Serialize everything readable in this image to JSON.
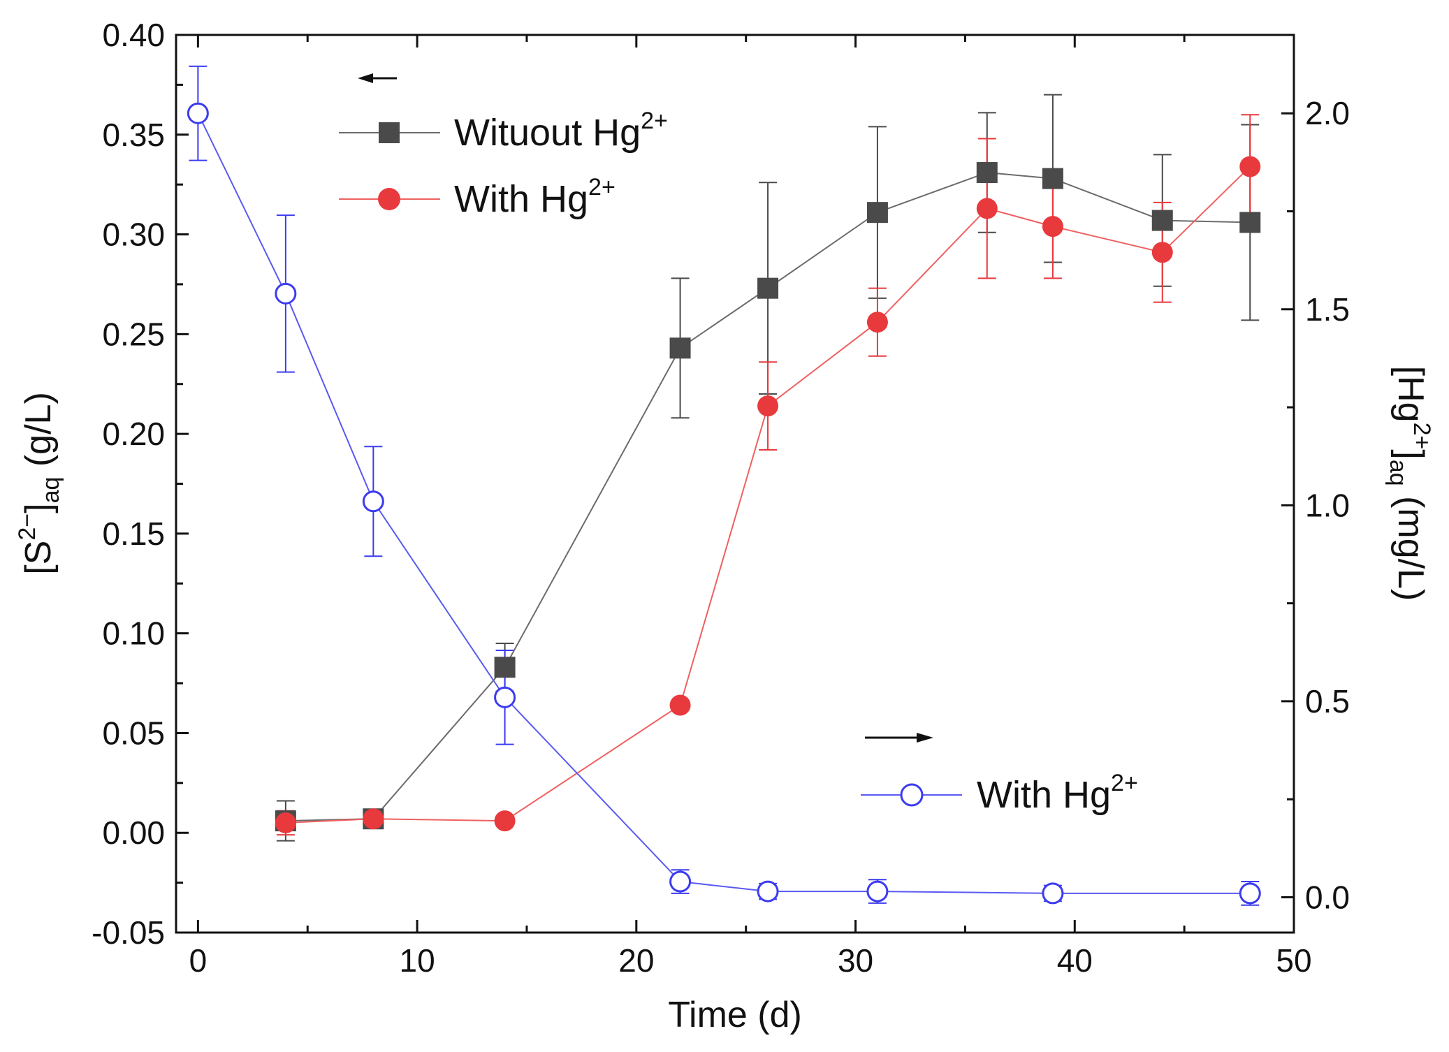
{
  "chart_data": {
    "type": "line",
    "x_axis": {
      "label": "Time (d)",
      "range": [
        -1,
        50
      ],
      "ticks": [
        0,
        10,
        20,
        30,
        40,
        50
      ],
      "tick_labels": [
        "0",
        "10",
        "20",
        "30",
        "40",
        "50"
      ]
    },
    "y_left": {
      "label_main": "[S",
      "label_sup": "2−",
      "label_mid": "]",
      "label_sub": "aq",
      "label_unit": " (g/L)",
      "range": [
        -0.05,
        0.4
      ],
      "ticks": [
        -0.05,
        0,
        0.05,
        0.1,
        0.15,
        0.2,
        0.25,
        0.3,
        0.35,
        0.4
      ],
      "tick_labels": [
        "-0.05",
        "0.00",
        "0.05",
        "0.10",
        "0.15",
        "0.20",
        "0.25",
        "0.30",
        "0.35",
        "0.40"
      ]
    },
    "y_right": {
      "label_main": "[Hg",
      "label_sup": "2+",
      "label_mid": "]",
      "label_sub": "aq",
      "label_unit": " (mg/L)",
      "range": [
        -0.09,
        2.2
      ],
      "ticks": [
        0,
        0.5,
        1,
        1.5,
        2
      ],
      "tick_labels": [
        "0.0",
        "0.5",
        "1.0",
        "1.5",
        "2.0"
      ]
    },
    "grid": false,
    "series": [
      {
        "name_main": "Wituout Hg",
        "name_sup": "2+",
        "axis": "left",
        "marker": "square",
        "filled": true,
        "color": "#4a4a4a",
        "line_color": "#6b6b6b",
        "x": [
          4,
          8,
          14,
          22,
          26,
          31,
          36,
          39,
          44,
          48
        ],
        "y": [
          0.006,
          0.007,
          0.083,
          0.243,
          0.273,
          0.311,
          0.331,
          0.328,
          0.307,
          0.306
        ],
        "err": [
          0.01,
          0.004,
          0.012,
          0.035,
          0.053,
          0.043,
          0.03,
          0.042,
          0.033,
          0.049
        ]
      },
      {
        "name_main": "With Hg",
        "name_sup": "2+",
        "axis": "left",
        "marker": "circle",
        "filled": true,
        "color": "#e8393d",
        "line_color": "#f06060",
        "x": [
          4,
          8,
          14,
          22,
          26,
          31,
          36,
          39,
          44,
          48
        ],
        "y": [
          0.005,
          0.007,
          0.006,
          0.064,
          0.214,
          0.256,
          0.313,
          0.304,
          0.291,
          0.334
        ],
        "err": [
          0.006,
          0.003,
          0.0,
          0.0,
          0.022,
          0.017,
          0.035,
          0.026,
          0.025,
          0.026
        ]
      },
      {
        "name_main": "With Hg",
        "name_sup": "2+",
        "axis": "right",
        "marker": "circle",
        "filled": false,
        "color": "#3c3cf0",
        "line_color": "#5a5af2",
        "x": [
          0,
          4,
          8,
          14,
          22,
          26,
          31,
          39,
          48
        ],
        "y": [
          2.0,
          1.54,
          1.01,
          0.51,
          0.04,
          0.015,
          0.015,
          0.01,
          0.01
        ],
        "err": [
          0.12,
          0.2,
          0.14,
          0.12,
          0.03,
          0.02,
          0.03,
          0.02,
          0.03
        ]
      }
    ]
  }
}
